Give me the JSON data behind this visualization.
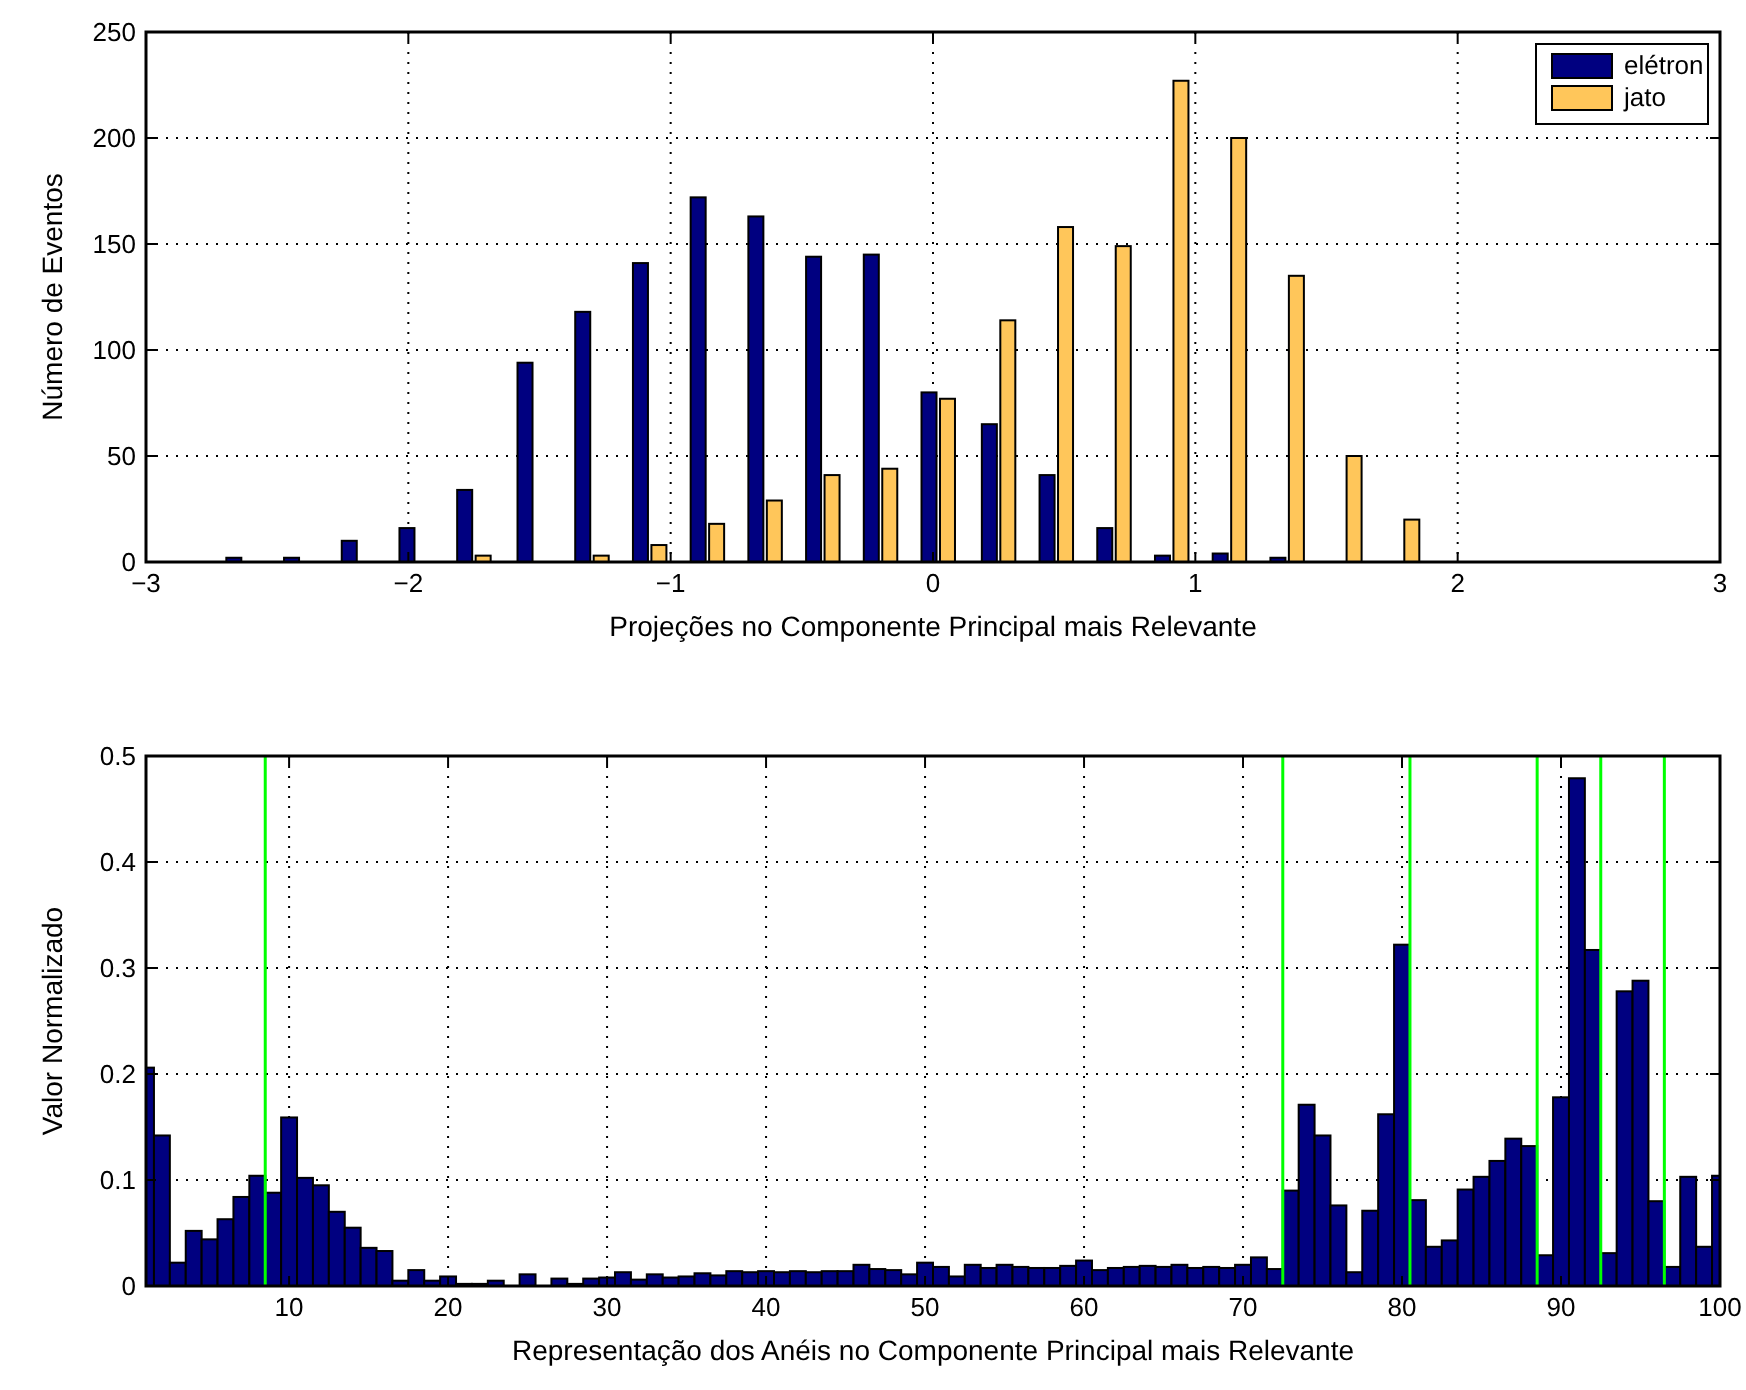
{
  "chart_data": [
    {
      "type": "bar",
      "xlabel": "Projeções no Componente Principal mais Relevante",
      "ylabel": "Número de Eventos",
      "x": [
        -2.63,
        -2.41,
        -2.19,
        -1.97,
        -1.75,
        -1.52,
        -1.3,
        -1.08,
        -0.86,
        -0.64,
        -0.42,
        -0.2,
        0.02,
        0.25,
        0.47,
        0.69,
        0.91,
        1.13,
        1.35,
        1.57,
        1.79
      ],
      "series": [
        {
          "name": "elétron",
          "color": "#000080",
          "values": [
            2,
            2,
            10,
            16,
            34,
            94,
            118,
            141,
            172,
            163,
            144,
            145,
            80,
            65,
            41,
            16,
            3,
            4,
            2,
            0,
            0
          ]
        },
        {
          "name": "jato",
          "color": "#ffc65a",
          "values": [
            0,
            0,
            0,
            0,
            3,
            0,
            3,
            8,
            18,
            29,
            41,
            44,
            77,
            114,
            158,
            149,
            227,
            200,
            135,
            50,
            20
          ]
        }
      ],
      "xlim": [
        -3,
        3
      ],
      "xticks": [
        {
          "value": -3,
          "label": "−3"
        },
        {
          "value": -2,
          "label": "−2"
        },
        {
          "value": -1,
          "label": "−1"
        },
        0,
        1,
        2,
        3
      ],
      "ylim": [
        0,
        250
      ],
      "yticks": [
        0,
        50,
        100,
        150,
        200,
        250
      ],
      "grid": true,
      "legend": "top right"
    },
    {
      "type": "bar",
      "xlabel": "Representação dos Anéis no Componente Principal mais Relevante",
      "ylabel": "Valor Normalizado",
      "x": [
        1,
        2,
        3,
        4,
        5,
        6,
        7,
        8,
        9,
        10,
        11,
        12,
        13,
        14,
        15,
        16,
        17,
        18,
        19,
        20,
        21,
        22,
        23,
        24,
        25,
        26,
        27,
        28,
        29,
        30,
        31,
        32,
        33,
        34,
        35,
        36,
        37,
        38,
        39,
        40,
        41,
        42,
        43,
        44,
        45,
        46,
        47,
        48,
        49,
        50,
        51,
        52,
        53,
        54,
        55,
        56,
        57,
        58,
        59,
        60,
        61,
        62,
        63,
        64,
        65,
        66,
        67,
        68,
        69,
        70,
        71,
        72,
        73,
        74,
        75,
        76,
        77,
        78,
        79,
        80,
        81,
        82,
        83,
        84,
        85,
        86,
        87,
        88,
        89,
        90,
        91,
        92,
        93,
        94,
        95,
        96,
        97,
        98,
        99,
        100
      ],
      "series": [
        {
          "color": "#000080",
          "values": [
            0.206,
            0.142,
            0.022,
            0.052,
            0.044,
            0.063,
            0.084,
            0.104,
            0.088,
            0.159,
            0.102,
            0.095,
            0.07,
            0.055,
            0.036,
            0.033,
            0.005,
            0.015,
            0.005,
            0.009,
            0.002,
            0.002,
            0.005,
            0,
            0.011,
            0,
            0.007,
            0.002,
            0.007,
            0.008,
            0.013,
            0.006,
            0.011,
            0.008,
            0.009,
            0.012,
            0.01,
            0.014,
            0.013,
            0.014,
            0.013,
            0.014,
            0.013,
            0.014,
            0.014,
            0.02,
            0.016,
            0.015,
            0.011,
            0.022,
            0.018,
            0.009,
            0.02,
            0.017,
            0.02,
            0.018,
            0.017,
            0.017,
            0.019,
            0.024,
            0.015,
            0.017,
            0.018,
            0.019,
            0.018,
            0.02,
            0.017,
            0.018,
            0.017,
            0.02,
            0.027,
            0.016,
            0.09,
            0.171,
            0.142,
            0.076,
            0.013,
            0.071,
            0.162,
            0.322,
            0.081,
            0.037,
            0.043,
            0.091,
            0.103,
            0.118,
            0.139,
            0.132,
            0.029,
            0.178,
            0.479,
            0.317,
            0.031,
            0.278,
            0.288,
            0.08,
            0.018,
            0.103,
            0.037,
            0.104
          ]
        }
      ],
      "ref_lines": [
        {
          "axis": "x",
          "value": 8.5,
          "color": "#00ff00"
        },
        {
          "axis": "x",
          "value": 72.5,
          "color": "#00ff00"
        },
        {
          "axis": "x",
          "value": 80.5,
          "color": "#00ff00"
        },
        {
          "axis": "x",
          "value": 88.5,
          "color": "#00ff00"
        },
        {
          "axis": "x",
          "value": 92.5,
          "color": "#00ff00"
        },
        {
          "axis": "x",
          "value": 96.5,
          "color": "#00ff00"
        }
      ],
      "xlim": [
        1,
        100
      ],
      "xticks": [
        10,
        20,
        30,
        40,
        50,
        60,
        70,
        80,
        90,
        100
      ],
      "ylim": [
        0,
        0.5
      ],
      "yticks": [
        0,
        0.1,
        0.2,
        0.3,
        0.4,
        0.5
      ],
      "grid": true
    }
  ]
}
